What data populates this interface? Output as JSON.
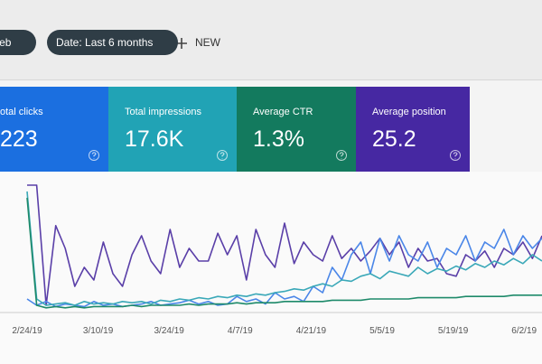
{
  "filters": [
    {
      "label": "Web"
    },
    {
      "label": "Date: Last 6 months"
    }
  ],
  "new_button": "NEW",
  "cards": [
    {
      "label": "otal clicks",
      "value": "223",
      "color": "#1b6fe0",
      "line_color": "#4a86e8",
      "values": [
        10,
        5,
        8,
        4,
        6,
        5,
        4,
        8,
        5,
        6,
        4,
        5,
        6,
        8,
        5,
        6,
        7,
        9,
        6,
        8,
        5,
        6,
        12,
        8,
        10,
        6,
        15,
        10,
        12,
        8,
        20,
        15,
        35,
        25,
        45,
        55,
        30,
        58,
        40,
        60,
        45,
        40,
        55,
        35,
        50,
        45,
        60,
        40,
        55,
        50,
        65,
        45,
        60,
        50,
        58
      ]
    },
    {
      "label": "Total impressions",
      "value": "17.6K",
      "color": "#21a3b5",
      "line_color": "#3aa8b8",
      "values": [
        95,
        10,
        5,
        6,
        7,
        5,
        8,
        6,
        7,
        6,
        8,
        7,
        8,
        6,
        9,
        8,
        10,
        9,
        11,
        10,
        12,
        11,
        13,
        12,
        14,
        13,
        15,
        16,
        18,
        17,
        20,
        22,
        20,
        25,
        24,
        28,
        30,
        26,
        32,
        30,
        28,
        35,
        30,
        34,
        32,
        36,
        33,
        38,
        35,
        40,
        37,
        42,
        38,
        45,
        40
      ]
    },
    {
      "label": "Average CTR",
      "value": "1.3%",
      "color": "#137a5e",
      "line_color": "#1e8a6a",
      "values": [
        90,
        5,
        3,
        4,
        3,
        4,
        3,
        4,
        4,
        4,
        4,
        5,
        4,
        5,
        5,
        5,
        5,
        6,
        5,
        6,
        6,
        6,
        7,
        6,
        7,
        7,
        7,
        8,
        8,
        8,
        8,
        8,
        9,
        9,
        9,
        9,
        10,
        10,
        10,
        10,
        10,
        11,
        11,
        11,
        11,
        11,
        12,
        12,
        12,
        12,
        12,
        13,
        13,
        13,
        13
      ]
    },
    {
      "label": "Average position",
      "value": "25.2",
      "color": "#4628a2",
      "line_color": "#5a3fa8",
      "values": [
        100,
        100,
        5,
        68,
        50,
        20,
        35,
        25,
        55,
        30,
        20,
        45,
        60,
        40,
        30,
        65,
        35,
        50,
        40,
        40,
        62,
        45,
        60,
        25,
        65,
        45,
        35,
        70,
        38,
        55,
        45,
        40,
        60,
        42,
        50,
        40,
        48,
        58,
        45,
        55,
        35,
        50,
        40,
        42,
        30,
        28,
        45,
        40,
        48,
        35,
        50,
        45,
        55,
        42,
        60
      ]
    }
  ],
  "x_labels": [
    "2/24/19",
    "3/10/19",
    "3/24/19",
    "4/7/19",
    "4/21/19",
    "5/5/19",
    "5/19/19",
    "6/2/19"
  ]
}
